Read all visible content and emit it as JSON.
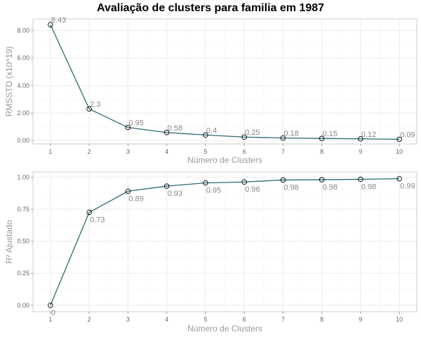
{
  "title": "Avaliação de clusters para familia em 1987",
  "colors": {
    "line": "#2e6b6e",
    "point_stroke": "#000000",
    "label": "#888888",
    "axis_text": "#666666",
    "axis_title": "#999999",
    "grid_major": "#ebebeb",
    "grid_minor": "#f5f5f5",
    "panel_border": "#cccccc"
  },
  "chart_data": [
    {
      "type": "line",
      "title": "",
      "xlabel": "Número de Clusters",
      "ylabel": "RMSSTD (x10^19)",
      "x": [
        1,
        2,
        3,
        4,
        5,
        6,
        7,
        8,
        9,
        10
      ],
      "values": [
        8.43,
        2.3,
        0.95,
        0.58,
        0.4,
        0.25,
        0.18,
        0.15,
        0.12,
        0.09
      ],
      "data_labels": [
        "8.43",
        "2.3",
        "0.95",
        "0.58",
        "0.4",
        "0.25",
        "0.18",
        "0.15",
        "0.12",
        "0.09"
      ],
      "x_ticks": [
        "1",
        "2",
        "3",
        "4",
        "5",
        "6",
        "7",
        "8",
        "9",
        "10"
      ],
      "y_ticks": [
        "0.00",
        "2.00",
        "4.00",
        "6.00",
        "8.00"
      ],
      "ylim": [
        -0.25,
        8.85
      ],
      "xlim": [
        0.55,
        10.45
      ],
      "grid": true,
      "label_position": "above-right"
    },
    {
      "type": "line",
      "title": "",
      "xlabel": "Número de Clusters",
      "ylabel": "R² Ajustado",
      "x": [
        1,
        2,
        3,
        4,
        5,
        6,
        7,
        8,
        9,
        10
      ],
      "values": [
        0,
        0.725,
        0.89,
        0.93,
        0.955,
        0.962,
        0.978,
        0.98,
        0.983,
        0.988
      ],
      "data_labels": [
        "0",
        "0.73",
        "0.89",
        "0.93",
        "0.95",
        "0.96",
        "0.98",
        "0.98",
        "0.98",
        "0.99"
      ],
      "x_ticks": [
        "1",
        "2",
        "3",
        "4",
        "5",
        "6",
        "7",
        "8",
        "9",
        "10"
      ],
      "y_ticks": [
        "0.00",
        "0.25",
        "0.50",
        "0.75",
        "1.00"
      ],
      "ylim": [
        -0.05,
        1.04
      ],
      "xlim": [
        0.55,
        10.45
      ],
      "grid": true,
      "label_position": "below-right"
    }
  ]
}
